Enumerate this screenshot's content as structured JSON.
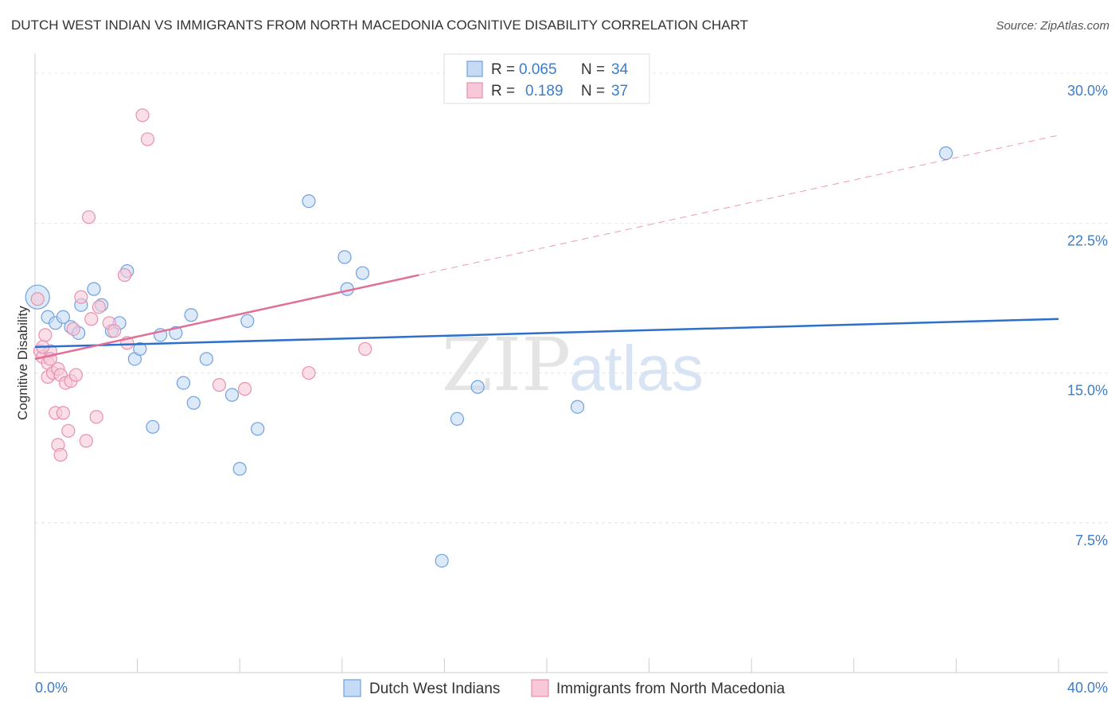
{
  "title": "DUTCH WEST INDIAN VS IMMIGRANTS FROM NORTH MACEDONIA COGNITIVE DISABILITY CORRELATION CHART",
  "source": "Source: ZipAtlas.com",
  "watermark": {
    "part1": "ZIP",
    "part2": "atlas"
  },
  "chart_data": {
    "type": "scatter",
    "title": "DUTCH WEST INDIAN VS IMMIGRANTS FROM NORTH MACEDONIA COGNITIVE DISABILITY CORRELATION CHART",
    "xlabel": "",
    "ylabel": "Cognitive Disability",
    "xlim": [
      0,
      40
    ],
    "ylim": [
      0,
      31
    ],
    "x_tick_labels": [
      {
        "value": 0,
        "label": "0.0%"
      },
      {
        "value": 40,
        "label": "40.0%"
      }
    ],
    "y_tick_labels": [
      {
        "value": 7.5,
        "label": "7.5%"
      },
      {
        "value": 15.0,
        "label": "15.0%"
      },
      {
        "value": 22.5,
        "label": "22.5%"
      },
      {
        "value": 30.0,
        "label": "30.0%"
      }
    ],
    "grid": true,
    "legend_position": "top-center",
    "stats": [
      {
        "r_label": "R =",
        "r": "0.065",
        "n_label": "N =",
        "n": "34"
      },
      {
        "r_label": "R =",
        "r": "0.189",
        "n_label": "N =",
        "n": "37"
      }
    ],
    "series": [
      {
        "name": "Dutch West Indians",
        "color": "#6fa0e0",
        "fill": "#c5daf4",
        "trend_color": "#2e6fcb",
        "trend": {
          "x0": 0,
          "y0": 16.3,
          "x1": 40,
          "y1": 17.7
        },
        "points": [
          [
            0.1,
            18.8
          ],
          [
            0.5,
            17.8
          ],
          [
            0.8,
            17.5
          ],
          [
            1.1,
            17.8
          ],
          [
            1.4,
            17.3
          ],
          [
            1.7,
            17.0
          ],
          [
            1.8,
            18.4
          ],
          [
            2.3,
            19.2
          ],
          [
            2.6,
            18.4
          ],
          [
            3.0,
            17.1
          ],
          [
            3.3,
            17.5
          ],
          [
            3.6,
            20.1
          ],
          [
            3.9,
            15.7
          ],
          [
            4.1,
            16.2
          ],
          [
            4.6,
            12.3
          ],
          [
            4.9,
            16.9
          ],
          [
            5.5,
            17.0
          ],
          [
            5.8,
            14.5
          ],
          [
            6.1,
            17.9
          ],
          [
            6.2,
            13.5
          ],
          [
            6.7,
            15.7
          ],
          [
            7.7,
            13.9
          ],
          [
            8.0,
            10.2
          ],
          [
            8.3,
            17.6
          ],
          [
            8.7,
            12.2
          ],
          [
            10.7,
            23.6
          ],
          [
            12.1,
            20.8
          ],
          [
            12.2,
            19.2
          ],
          [
            12.8,
            20.0
          ],
          [
            15.9,
            5.6
          ],
          [
            16.5,
            12.7
          ],
          [
            17.3,
            14.3
          ],
          [
            21.2,
            13.3
          ],
          [
            35.6,
            26.0
          ]
        ]
      },
      {
        "name": "Immigrants from North Macedonia",
        "color": "#e890ad",
        "fill": "#f7c9d8",
        "trend_color": "#e0709a",
        "trend": {
          "x0": 0,
          "y0": 15.7,
          "x1": 15.0,
          "y1": 19.9
        },
        "trend_extension": {
          "x0": 15.0,
          "y0": 19.9,
          "x1": 40,
          "y1": 26.9
        },
        "points": [
          [
            0.1,
            18.7
          ],
          [
            0.2,
            16.1
          ],
          [
            0.3,
            15.8
          ],
          [
            0.4,
            16.9
          ],
          [
            0.5,
            15.5
          ],
          [
            0.5,
            14.8
          ],
          [
            0.6,
            16.1
          ],
          [
            0.7,
            15.0
          ],
          [
            0.8,
            13.0
          ],
          [
            0.9,
            15.2
          ],
          [
            0.9,
            11.4
          ],
          [
            1.0,
            14.9
          ],
          [
            1.0,
            10.9
          ],
          [
            1.1,
            13.0
          ],
          [
            1.2,
            14.5
          ],
          [
            1.3,
            12.1
          ],
          [
            1.4,
            14.6
          ],
          [
            1.5,
            17.2
          ],
          [
            1.6,
            14.9
          ],
          [
            1.8,
            18.8
          ],
          [
            2.0,
            11.6
          ],
          [
            2.1,
            22.8
          ],
          [
            2.2,
            17.7
          ],
          [
            2.4,
            12.8
          ],
          [
            2.5,
            18.3
          ],
          [
            2.9,
            17.5
          ],
          [
            3.1,
            17.1
          ],
          [
            3.5,
            19.9
          ],
          [
            3.6,
            16.5
          ],
          [
            4.2,
            27.9
          ],
          [
            4.4,
            26.7
          ],
          [
            7.2,
            14.4
          ],
          [
            8.2,
            14.2
          ],
          [
            10.7,
            15.0
          ],
          [
            12.9,
            16.2
          ],
          [
            0.3,
            16.3
          ],
          [
            0.6,
            15.7
          ]
        ]
      }
    ]
  }
}
